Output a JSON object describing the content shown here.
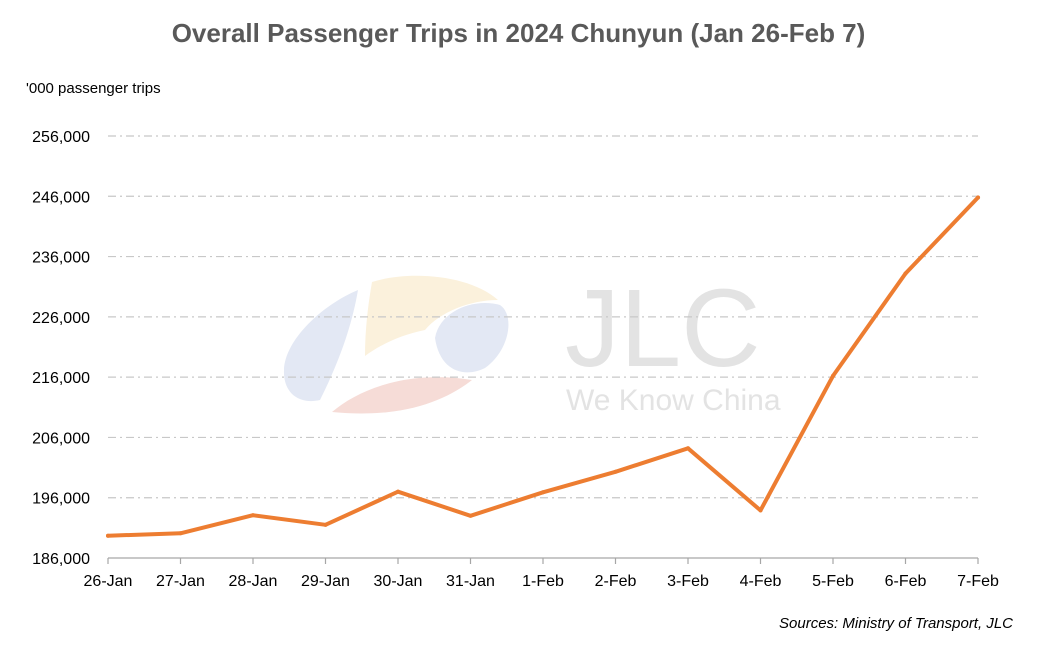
{
  "header": {
    "title": "Overall Passenger Trips in 2024 Chunyun (Jan 26-Feb 7)"
  },
  "footer": {
    "source": "Sources: Ministry of Transport, JLC"
  },
  "watermark": {
    "brand": "JLC",
    "tagline": "We Know China",
    "colors": [
      "#e3e8f4",
      "#fbf1dc",
      "#f6dcd7",
      "#e3e3e3"
    ]
  },
  "chart_data": {
    "type": "line",
    "title": "Overall Passenger Trips in 2024 Chunyun (Jan 26-Feb 7)",
    "ylabel": "'000 passenger trips",
    "xlabel": "",
    "categories": [
      "26-Jan",
      "27-Jan",
      "28-Jan",
      "29-Jan",
      "30-Jan",
      "31-Jan",
      "1-Feb",
      "2-Feb",
      "3-Feb",
      "4-Feb",
      "5-Feb",
      "6-Feb",
      "7-Feb"
    ],
    "series": [
      {
        "color": "#ed7d31",
        "values": [
          189700,
          190100,
          193100,
          191500,
          197000,
          193000,
          196900,
          200300,
          204200,
          193900,
          216200,
          233200,
          245800
        ]
      }
    ],
    "ylim": [
      186000,
      256000
    ],
    "yticks": [
      186000,
      196000,
      206000,
      216000,
      226000,
      236000,
      246000,
      256000
    ],
    "ytick_labels": [
      "186,000",
      "196,000",
      "206,000",
      "216,000",
      "226,000",
      "236,000",
      "246,000",
      "256,000"
    ],
    "grid": "horizontal dash-dot",
    "legend": "none"
  }
}
